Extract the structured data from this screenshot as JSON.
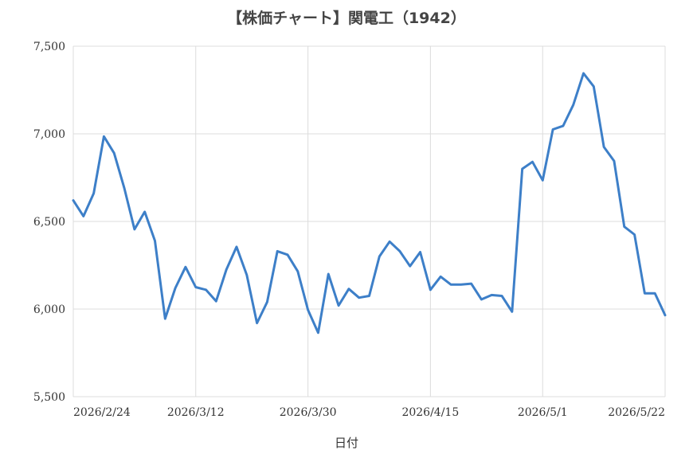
{
  "chart_data": {
    "type": "line",
    "title": "【株価チャート】関電工（1942）",
    "xlabel": "日付",
    "ylabel": "",
    "ylim": [
      5500,
      7500
    ],
    "yticks": [
      5500,
      6000,
      6500,
      7000,
      7500
    ],
    "ytick_labels": [
      "5,500",
      "6,000",
      "6,500",
      "7,000",
      "7,500"
    ],
    "xtick_labels": [
      "2026/2/24",
      "2026/3/12",
      "2026/3/30",
      "2026/4/15",
      "2026/5/1",
      "2026/5/22"
    ],
    "xtick_index": [
      0,
      12,
      23,
      35,
      46,
      58
    ],
    "grid": true,
    "color": "#3d7fc8",
    "series": [
      {
        "values": [
          6620,
          6530,
          6660,
          6985,
          6890,
          6690,
          6455,
          6555,
          6390,
          5945,
          6120,
          6240,
          6125,
          6110,
          6045,
          6225,
          6355,
          6195,
          5920,
          6040,
          6330,
          6310,
          6215,
          5995,
          5865,
          6200,
          6020,
          6115,
          6065,
          6075,
          6300,
          6385,
          6330,
          6245,
          6325,
          6110,
          6185,
          6140,
          6140,
          6145,
          6055,
          6080,
          6075,
          5985,
          6800,
          6840,
          6735,
          7025,
          7045,
          7165,
          7345,
          7270,
          6925,
          6845,
          6470,
          6425,
          6090,
          6090,
          5965
        ]
      }
    ]
  }
}
